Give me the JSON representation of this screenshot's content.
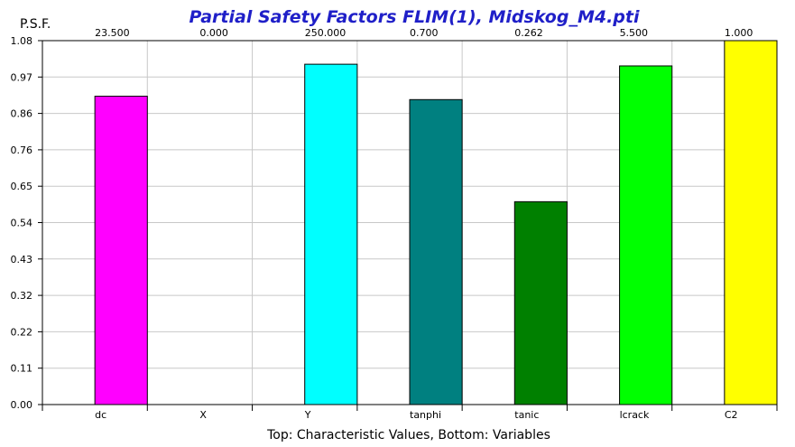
{
  "chart_data": {
    "type": "bar",
    "title": "Partial Safety Factors FLIM(1), Midskog_M4.pti",
    "ylabel": "P.S.F.",
    "xlabel": "Top: Characteristic Values, Bottom: Variables",
    "categories": [
      "dc",
      "X",
      "Y",
      "tanphi",
      "tanic",
      "lcrack",
      "C2"
    ],
    "top_values": [
      "23.500",
      "0.000",
      "250.000",
      "0.700",
      "0.262",
      "5.500",
      "1.000"
    ],
    "values": [
      0.915,
      0.0,
      1.01,
      0.905,
      0.602,
      1.005,
      1.08
    ],
    "colors": [
      "#ff00ff",
      "#ffffff",
      "#00ffff",
      "#008080",
      "#008000",
      "#00ff00",
      "#ffff00"
    ],
    "ylim": [
      0,
      1.08
    ],
    "yticks": [
      "0.00",
      "0.11",
      "0.22",
      "0.32",
      "0.43",
      "0.54",
      "0.65",
      "0.76",
      "0.86",
      "0.97",
      "1.08"
    ],
    "grid": true,
    "legend": "none"
  }
}
